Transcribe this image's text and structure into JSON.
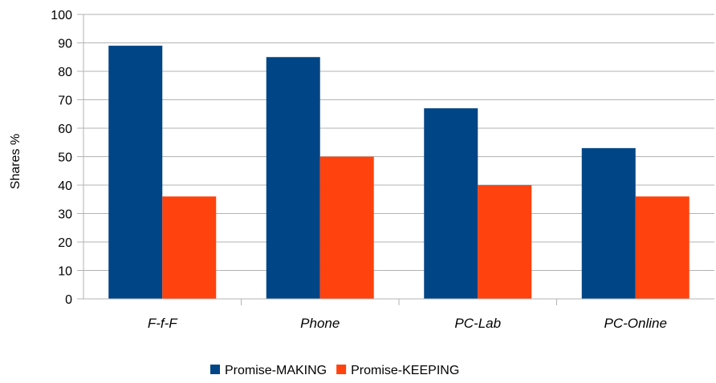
{
  "chart_data": {
    "type": "bar",
    "title": "",
    "xlabel": "",
    "ylabel": "Shares %",
    "ylim": [
      0,
      100
    ],
    "yticks": [
      0,
      10,
      20,
      30,
      40,
      50,
      60,
      70,
      80,
      90,
      100
    ],
    "categories": [
      "F-f-F",
      "Phone",
      "PC-Lab",
      "PC-Online"
    ],
    "series": [
      {
        "name": "Promise-MAKING",
        "color": "#004586",
        "values": [
          89,
          85,
          67,
          53
        ]
      },
      {
        "name": "Promise-KEEPING",
        "color": "#ff420e",
        "values": [
          36,
          50,
          40,
          36
        ]
      }
    ],
    "grid": true,
    "legend_position": "bottom"
  }
}
